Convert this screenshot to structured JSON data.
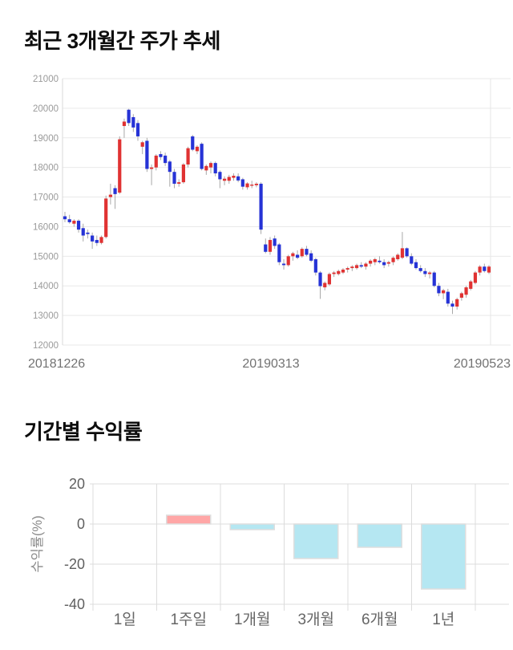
{
  "page": {
    "section1_title": "최근 3개월간 주가 추세",
    "section2_title": "기간별 수익률"
  },
  "chart_data": [
    {
      "type": "candlestick",
      "title": "최근 3개월간 주가 추세",
      "x_tick_labels": [
        "20181226",
        "20190313",
        "20190523"
      ],
      "y_ticks": [
        21000,
        20000,
        19000,
        18000,
        17000,
        16000,
        15000,
        14000,
        13000,
        12000
      ],
      "ylim": [
        12000,
        21000
      ],
      "grid": true,
      "legend": "none",
      "up_color": "#e03232",
      "down_color": "#2633d6",
      "wick_color": "#a8a8a8",
      "grid_color": "#e9e9e9",
      "axis_color": "#d9d9d9",
      "tick_label_color": "#9a9a9a",
      "x_label_color": "#727272",
      "candles_ohlc": [
        [
          16350,
          16500,
          16150,
          16250
        ],
        [
          16250,
          16400,
          16100,
          16150
        ],
        [
          16100,
          16250,
          16000,
          16200
        ],
        [
          16200,
          16250,
          15800,
          15900
        ],
        [
          15950,
          16100,
          15500,
          15700
        ],
        [
          15800,
          15900,
          15600,
          15750
        ],
        [
          15700,
          15800,
          15250,
          15500
        ],
        [
          15550,
          15700,
          15350,
          15450
        ],
        [
          15450,
          15700,
          15400,
          15650
        ],
        [
          15650,
          17050,
          15600,
          16950
        ],
        [
          17000,
          17450,
          16750,
          17080
        ],
        [
          17300,
          17400,
          16600,
          17100
        ],
        [
          17150,
          19050,
          17100,
          18950
        ],
        [
          19400,
          19650,
          19000,
          19550
        ],
        [
          19950,
          19980,
          19400,
          19500
        ],
        [
          19700,
          19800,
          19200,
          19350
        ],
        [
          19500,
          19600,
          18900,
          19050
        ],
        [
          18700,
          18900,
          18450,
          18850
        ],
        [
          18900,
          19000,
          17850,
          17950
        ],
        [
          17950,
          18100,
          17400,
          18000
        ],
        [
          18000,
          18450,
          17900,
          18400
        ],
        [
          18450,
          18550,
          18250,
          18350
        ],
        [
          18400,
          18500,
          18050,
          18150
        ],
        [
          18200,
          18250,
          17350,
          17850
        ],
        [
          17850,
          17950,
          17300,
          17450
        ],
        [
          17450,
          17600,
          17350,
          17500
        ],
        [
          17500,
          18150,
          17450,
          18100
        ],
        [
          18100,
          18700,
          18000,
          18650
        ],
        [
          19050,
          19100,
          18550,
          18600
        ],
        [
          18550,
          18750,
          18450,
          18700
        ],
        [
          18800,
          18850,
          17900,
          17950
        ],
        [
          17900,
          18100,
          17750,
          18050
        ],
        [
          18000,
          18200,
          17800,
          18150
        ],
        [
          18150,
          18200,
          17700,
          17800
        ],
        [
          17850,
          17900,
          17300,
          17600
        ],
        [
          17550,
          17700,
          17400,
          17620
        ],
        [
          17550,
          17750,
          17450,
          17680
        ],
        [
          17650,
          17800,
          17550,
          17720
        ],
        [
          17700,
          17800,
          17500,
          17560
        ],
        [
          17600,
          17650,
          17250,
          17350
        ],
        [
          17330,
          17500,
          17250,
          17460
        ],
        [
          17400,
          17550,
          17300,
          17420
        ],
        [
          17400,
          17500,
          17330,
          17450
        ],
        [
          17450,
          17500,
          15750,
          15900
        ],
        [
          15400,
          15600,
          15100,
          15150
        ],
        [
          15150,
          15650,
          15050,
          15550
        ],
        [
          15600,
          15700,
          15250,
          15350
        ],
        [
          15400,
          15450,
          14700,
          14800
        ],
        [
          14750,
          14900,
          14550,
          14700
        ],
        [
          14700,
          15050,
          14650,
          15000
        ],
        [
          15000,
          15150,
          14850,
          15100
        ],
        [
          15050,
          15200,
          14900,
          14950
        ],
        [
          15000,
          15300,
          14950,
          15250
        ],
        [
          15250,
          15350,
          15000,
          15050
        ],
        [
          15100,
          15200,
          14800,
          14850
        ],
        [
          14900,
          14950,
          14350,
          14450
        ],
        [
          14450,
          14500,
          13560,
          13990
        ],
        [
          13950,
          14150,
          13850,
          14100
        ],
        [
          14050,
          14450,
          14000,
          14400
        ],
        [
          14400,
          14500,
          14300,
          14450
        ],
        [
          14400,
          14550,
          14350,
          14500
        ],
        [
          14450,
          14600,
          14400,
          14550
        ],
        [
          14550,
          14650,
          14450,
          14600
        ],
        [
          14600,
          14700,
          14500,
          14650
        ],
        [
          14600,
          14750,
          14550,
          14700
        ],
        [
          14700,
          14800,
          14600,
          14650
        ],
        [
          14650,
          14800,
          14550,
          14750
        ],
        [
          14750,
          14900,
          14650,
          14850
        ],
        [
          14800,
          14950,
          14700,
          14900
        ],
        [
          14850,
          15000,
          14750,
          14800
        ],
        [
          14800,
          14900,
          14600,
          14700
        ],
        [
          14750,
          14850,
          14650,
          14800
        ],
        [
          14800,
          15000,
          14700,
          14950
        ],
        [
          14900,
          15100,
          14850,
          15050
        ],
        [
          14950,
          15820,
          14900,
          15270
        ],
        [
          15270,
          15300,
          14950,
          15000
        ],
        [
          15000,
          15100,
          14700,
          14750
        ],
        [
          14800,
          14900,
          14550,
          14600
        ],
        [
          14600,
          14700,
          14450,
          14500
        ],
        [
          14500,
          14600,
          14300,
          14400
        ],
        [
          14400,
          14500,
          14250,
          14450
        ],
        [
          14450,
          14500,
          13950,
          14000
        ],
        [
          14000,
          14100,
          13650,
          13750
        ],
        [
          13750,
          13900,
          13550,
          13850
        ],
        [
          13800,
          13900,
          13300,
          13400
        ],
        [
          13400,
          13500,
          13050,
          13300
        ],
        [
          13300,
          13600,
          13200,
          13550
        ],
        [
          13600,
          13800,
          13500,
          13750
        ],
        [
          13700,
          14000,
          13600,
          13950
        ],
        [
          13900,
          14200,
          13850,
          14150
        ],
        [
          14100,
          14500,
          14050,
          14450
        ],
        [
          14450,
          14700,
          14350,
          14650
        ],
        [
          14650,
          14750,
          14450,
          14500
        ],
        [
          14450,
          14700,
          14400,
          14650
        ]
      ]
    },
    {
      "type": "bar",
      "title": "기간별 수익률",
      "categories": [
        "1일",
        "1주일",
        "1개월",
        "3개월",
        "6개월",
        "1년"
      ],
      "values": [
        0,
        4.4,
        -2.8,
        -17.2,
        -11.6,
        -32.4
      ],
      "xlabel": "",
      "ylabel": "수익률(%)",
      "y_ticks": [
        20,
        0,
        -20,
        -40
      ],
      "ylim": [
        -40,
        20
      ],
      "grid": true,
      "legend": "none",
      "positive_color": "#ffa6a6",
      "negative_color": "#b5e7f2",
      "bar_stroke": "#dedede",
      "grid_color": "#dcdcdc",
      "tick_label_color": "#5f5f5f",
      "category_label_color": "#666666",
      "axis_title_color": "#8a8a8a"
    }
  ]
}
